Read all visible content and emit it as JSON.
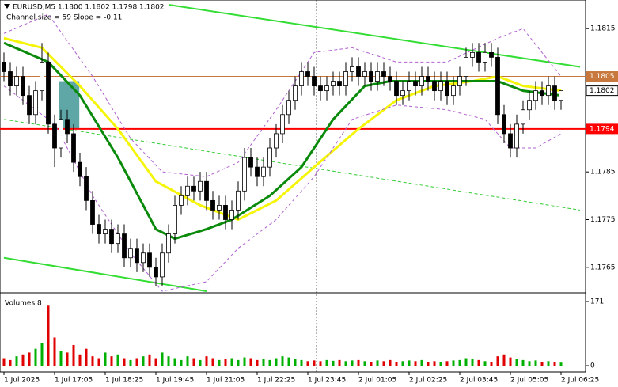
{
  "chart_data": {
    "type": "candlestick",
    "title": "EURUSD,M5  1.1800 1.1802 1.1798 1.1802",
    "subtitle": "Channel size = 59  Slope = -0.11",
    "ylim": [
      1.176,
      1.1821
    ],
    "yticks": [
      1.1815,
      1.1785,
      1.1775,
      1.1765
    ],
    "xticks": [
      {
        "value": 0,
        "label": "1 Jul 2025"
      },
      {
        "value": 8,
        "label": "1 Jul 17:05"
      },
      {
        "value": 16,
        "label": "1 Jul 18:25"
      },
      {
        "value": 24,
        "label": "1 Jul 19:45"
      },
      {
        "value": 32,
        "label": "1 Jul 21:05"
      },
      {
        "value": 40,
        "label": "1 Jul 22:25"
      },
      {
        "value": 48,
        "label": "1 Jul 23:45"
      },
      {
        "value": 56,
        "label": "2 Jul 01:05"
      },
      {
        "value": 64,
        "label": "2 Jul 02:25"
      },
      {
        "value": 72,
        "label": "2 Jul 03:45"
      },
      {
        "value": 80,
        "label": "2 Jul 05:05"
      },
      {
        "value": 88,
        "label": "2 Jul 06:25"
      }
    ],
    "candles": [
      [
        1.1808,
        1.181,
        1.1804,
        1.1806
      ],
      [
        1.1806,
        1.1808,
        1.1801,
        1.1803
      ],
      [
        1.1803,
        1.1807,
        1.1801,
        1.1805
      ],
      [
        1.1805,
        1.1807,
        1.1799,
        1.1801
      ],
      [
        1.1801,
        1.1803,
        1.1795,
        1.1797
      ],
      [
        1.1797,
        1.1804,
        1.1795,
        1.1802
      ],
      [
        1.1802,
        1.1812,
        1.18,
        1.1808
      ],
      [
        1.1808,
        1.181,
        1.1793,
        1.1795
      ],
      [
        1.1795,
        1.1797,
        1.1786,
        1.179
      ],
      [
        1.179,
        1.1798,
        1.1788,
        1.1796
      ],
      [
        1.1796,
        1.1798,
        1.1791,
        1.1793
      ],
      [
        1.1793,
        1.1795,
        1.1785,
        1.1787
      ],
      [
        1.1787,
        1.1789,
        1.1782,
        1.1784
      ],
      [
        1.1784,
        1.1786,
        1.1777,
        1.1779
      ],
      [
        1.1779,
        1.1781,
        1.1772,
        1.1774
      ],
      [
        1.1774,
        1.1776,
        1.177,
        1.1772
      ],
      [
        1.1772,
        1.1775,
        1.177,
        1.1773
      ],
      [
        1.1773,
        1.1775,
        1.1768,
        1.177
      ],
      [
        1.177,
        1.1774,
        1.1768,
        1.1772
      ],
      [
        1.1772,
        1.1774,
        1.1765,
        1.1767
      ],
      [
        1.1767,
        1.1771,
        1.1765,
        1.1769
      ],
      [
        1.1769,
        1.1771,
        1.1764,
        1.1766
      ],
      [
        1.1766,
        1.177,
        1.1764,
        1.1768
      ],
      [
        1.1768,
        1.177,
        1.1763,
        1.1765
      ],
      [
        1.1765,
        1.1767,
        1.1761,
        1.1763
      ],
      [
        1.1763,
        1.177,
        1.1761,
        1.1768
      ],
      [
        1.1768,
        1.1774,
        1.1766,
        1.1772
      ],
      [
        1.1772,
        1.178,
        1.177,
        1.1778
      ],
      [
        1.1778,
        1.1782,
        1.1776,
        1.178
      ],
      [
        1.178,
        1.1784,
        1.1778,
        1.1782
      ],
      [
        1.1782,
        1.1784,
        1.1779,
        1.1781
      ],
      [
        1.1781,
        1.1785,
        1.1779,
        1.1783
      ],
      [
        1.1783,
        1.1785,
        1.1777,
        1.1779
      ],
      [
        1.1779,
        1.1781,
        1.1775,
        1.1777
      ],
      [
        1.1777,
        1.178,
        1.1775,
        1.1778
      ],
      [
        1.1778,
        1.178,
        1.1773,
        1.1775
      ],
      [
        1.1775,
        1.1779,
        1.1773,
        1.1777
      ],
      [
        1.1777,
        1.1783,
        1.1775,
        1.1781
      ],
      [
        1.1781,
        1.179,
        1.1779,
        1.1788
      ],
      [
        1.1788,
        1.179,
        1.1784,
        1.1786
      ],
      [
        1.1786,
        1.1788,
        1.1782,
        1.1784
      ],
      [
        1.1784,
        1.1788,
        1.1782,
        1.1786
      ],
      [
        1.1786,
        1.1792,
        1.1784,
        1.179
      ],
      [
        1.179,
        1.1795,
        1.1788,
        1.1793
      ],
      [
        1.1793,
        1.1799,
        1.1791,
        1.1797
      ],
      [
        1.1797,
        1.1802,
        1.1795,
        1.18
      ],
      [
        1.18,
        1.1805,
        1.1798,
        1.1803
      ],
      [
        1.1803,
        1.1808,
        1.1801,
        1.1806
      ],
      [
        1.1806,
        1.1808,
        1.1803,
        1.1805
      ],
      [
        1.1805,
        1.1807,
        1.1801,
        1.1803
      ],
      [
        1.1803,
        1.1805,
        1.18,
        1.1802
      ],
      [
        1.1802,
        1.1805,
        1.18,
        1.1803
      ],
      [
        1.1803,
        1.1806,
        1.1801,
        1.1804
      ],
      [
        1.1804,
        1.1806,
        1.1801,
        1.1803
      ],
      [
        1.1803,
        1.1808,
        1.1801,
        1.1806
      ],
      [
        1.1806,
        1.1809,
        1.1804,
        1.1807
      ],
      [
        1.1807,
        1.1809,
        1.1803,
        1.1805
      ],
      [
        1.1805,
        1.1808,
        1.1803,
        1.1806
      ],
      [
        1.1806,
        1.1808,
        1.1802,
        1.1804
      ],
      [
        1.1804,
        1.1808,
        1.1802,
        1.1806
      ],
      [
        1.1806,
        1.1808,
        1.1803,
        1.1805
      ],
      [
        1.1805,
        1.1807,
        1.1802,
        1.1804
      ],
      [
        1.1804,
        1.1806,
        1.1799,
        1.1801
      ],
      [
        1.1801,
        1.1804,
        1.1799,
        1.1802
      ],
      [
        1.1802,
        1.1806,
        1.18,
        1.1804
      ],
      [
        1.1804,
        1.1806,
        1.1801,
        1.1803
      ],
      [
        1.1803,
        1.1807,
        1.1801,
        1.1805
      ],
      [
        1.1805,
        1.1807,
        1.1802,
        1.1804
      ],
      [
        1.1804,
        1.1806,
        1.18,
        1.1802
      ],
      [
        1.1802,
        1.1806,
        1.18,
        1.1804
      ],
      [
        1.1804,
        1.1806,
        1.1799,
        1.1801
      ],
      [
        1.1801,
        1.1805,
        1.1799,
        1.1803
      ],
      [
        1.1803,
        1.1807,
        1.1801,
        1.1805
      ],
      [
        1.1805,
        1.1811,
        1.1803,
        1.1809
      ],
      [
        1.1809,
        1.1812,
        1.1807,
        1.181
      ],
      [
        1.181,
        1.1812,
        1.1806,
        1.1808
      ],
      [
        1.1808,
        1.1812,
        1.1806,
        1.181
      ],
      [
        1.181,
        1.1812,
        1.1807,
        1.1809
      ],
      [
        1.1809,
        1.1811,
        1.1795,
        1.1797
      ],
      [
        1.1797,
        1.1799,
        1.1791,
        1.1793
      ],
      [
        1.1793,
        1.1795,
        1.1788,
        1.179
      ],
      [
        1.179,
        1.1797,
        1.1788,
        1.1795
      ],
      [
        1.1795,
        1.18,
        1.1793,
        1.1798
      ],
      [
        1.1798,
        1.1802,
        1.1796,
        1.18
      ],
      [
        1.18,
        1.1804,
        1.1798,
        1.1802
      ],
      [
        1.1802,
        1.1804,
        1.1799,
        1.1801
      ],
      [
        1.1801,
        1.1805,
        1.1799,
        1.1803
      ],
      [
        1.1803,
        1.1805,
        1.1798,
        1.18
      ],
      [
        1.18,
        1.1802,
        1.1798,
        1.1802
      ]
    ],
    "volume_label": "Volumes 8",
    "volume_ylim": [
      0,
      171
    ],
    "volume_ticks": [
      171,
      0
    ],
    "volumes": [
      20,
      15,
      25,
      30,
      35,
      45,
      60,
      160,
      75,
      40,
      35,
      55,
      30,
      45,
      25,
      20,
      35,
      25,
      30,
      20,
      15,
      20,
      25,
      30,
      20,
      35,
      25,
      20,
      15,
      25,
      20,
      15,
      25,
      20,
      15,
      18,
      20,
      15,
      22,
      20,
      15,
      18,
      15,
      20,
      25,
      22,
      18,
      15,
      12,
      14,
      12,
      15,
      13,
      15,
      12,
      14,
      15,
      12,
      10,
      14,
      12,
      15,
      10,
      12,
      14,
      12,
      15,
      10,
      12,
      10,
      12,
      14,
      15,
      20,
      18,
      15,
      12,
      10,
      25,
      30,
      22,
      18,
      15,
      12,
      14,
      10,
      12,
      10,
      8
    ],
    "up_volume_color": "#00b000",
    "down_volume_color": "#e00000",
    "indicators": [
      {
        "color": "#f5f50a",
        "width": 3,
        "dash": false,
        "x": [
          0,
          6,
          12,
          18,
          24,
          31,
          37,
          43,
          49,
          56,
          62,
          68,
          74,
          78,
          82,
          88
        ],
        "values": [
          1.1813,
          1.1811,
          1.1803,
          1.1794,
          1.1783,
          1.1778,
          1.1775,
          1.1779,
          1.1786,
          1.1794,
          1.18,
          1.1803,
          1.1804,
          1.1805,
          1.1803,
          1.1802
        ]
      },
      {
        "color": "#0a8a0a",
        "width": 3,
        "dash": false,
        "x": [
          0,
          7,
          12,
          18,
          24,
          27,
          32,
          36,
          42,
          47,
          52,
          57,
          61,
          67,
          74,
          78,
          82,
          88
        ],
        "values": [
          1.1812,
          1.1808,
          1.1801,
          1.1788,
          1.1773,
          1.1771,
          1.1773,
          1.1775,
          1.178,
          1.1786,
          1.1796,
          1.1803,
          1.1804,
          1.1804,
          1.1804,
          1.1804,
          1.1802,
          1.1801
        ]
      },
      {
        "color": "#b060d0",
        "width": 1,
        "dash": true,
        "x": [
          0,
          7,
          14,
          20,
          25,
          32,
          37,
          43,
          49,
          55,
          62,
          70,
          78,
          82,
          88
        ],
        "values": [
          1.1814,
          1.1818,
          1.1805,
          1.1792,
          1.1785,
          1.1784,
          1.1787,
          1.1798,
          1.181,
          1.1811,
          1.1808,
          1.1808,
          1.1813,
          1.1815,
          1.1805
        ]
      },
      {
        "color": "#b060d0",
        "width": 1,
        "dash": true,
        "x": [
          0,
          8,
          14,
          20,
          25,
          32,
          37,
          43,
          49,
          55,
          62,
          70,
          76,
          80,
          84,
          88
        ],
        "values": [
          1.1803,
          1.1795,
          1.178,
          1.1768,
          1.176,
          1.1762,
          1.1769,
          1.1775,
          1.1784,
          1.1796,
          1.1799,
          1.1798,
          1.1796,
          1.179,
          1.179,
          1.1793
        ]
      }
    ],
    "channel_lines": [
      {
        "color": "#33dd33",
        "width": 2,
        "dash": false,
        "x": [
          26,
          91
        ],
        "values": [
          1.182,
          1.1807
        ]
      },
      {
        "color": "#33dd33",
        "width": 2,
        "dash": false,
        "x": [
          0,
          32
        ],
        "values": [
          1.1767,
          1.176
        ]
      },
      {
        "color": "#33cc33",
        "width": 1,
        "dash": true,
        "x": [
          0,
          91
        ],
        "values": [
          1.1796,
          1.1777
        ]
      }
    ],
    "price_lines": [
      {
        "value": 1.1805,
        "color": "#c8783c"
      },
      {
        "value": 1.1794,
        "color": "#ff0000"
      }
    ],
    "current_price": 1.1802,
    "vline": 49.4,
    "zone": {
      "x": [
        8.75,
        11.9
      ],
      "values": [
        1.1804,
        1.1794
      ],
      "color": "#2a8a8a"
    }
  }
}
